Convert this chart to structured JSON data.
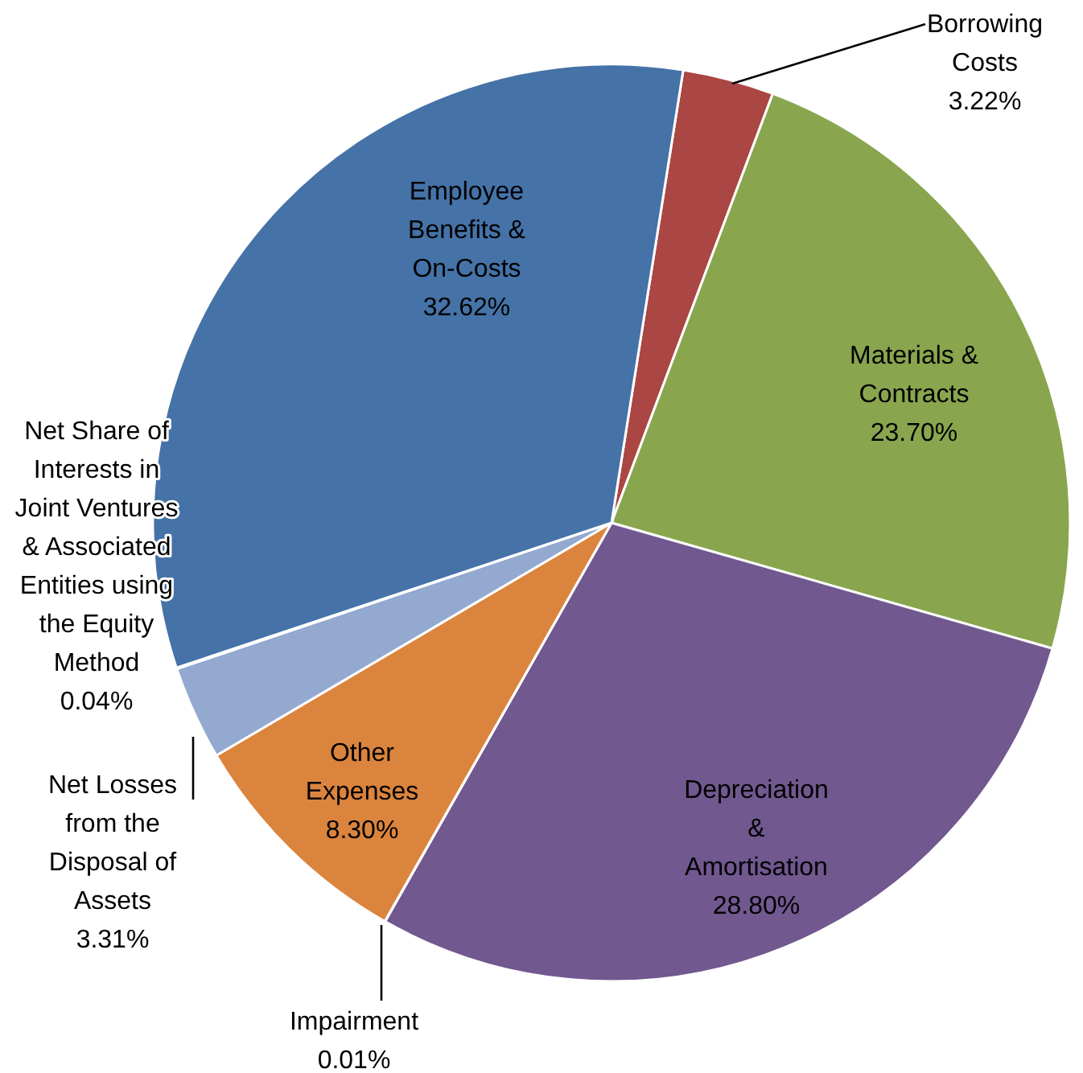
{
  "chart_data": {
    "type": "pie",
    "categories": [
      "Borrowing Costs",
      "Materials & Contracts",
      "Depreciation & Amortisation",
      "Impairment",
      "Other Expenses",
      "Net Losses from the Disposal of Assets",
      "Net Share of Interests in Joint Ventures & Associated Entities using the Equity Method",
      "Employee Benefits & On-Costs"
    ],
    "values": [
      3.22,
      23.7,
      28.8,
      0.01,
      8.3,
      3.31,
      0.04,
      32.62
    ],
    "value_labels": [
      "3.22%",
      "23.70%",
      "28.80%",
      "0.01%",
      "8.30%",
      "3.31%",
      "0.04%",
      "32.62%"
    ],
    "colors": [
      "#aa4643",
      "#89a54e",
      "#71588f",
      "#4198af",
      "#db843d",
      "#93a9cf",
      "#d19392",
      "#4572a7"
    ]
  }
}
